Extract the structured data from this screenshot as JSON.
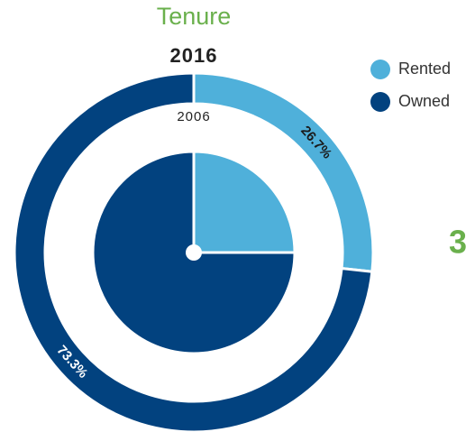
{
  "chart_data": {
    "type": "donut",
    "title": "Tenure",
    "categories": [
      "Rented",
      "Owned"
    ],
    "colors": [
      "#4fb0da",
      "#02427f"
    ],
    "series": [
      {
        "name": "2016",
        "values": [
          26.7,
          73.3
        ],
        "value_labels": [
          "26.7%",
          "73.3%"
        ]
      },
      {
        "name": "2006",
        "values": [
          25,
          75
        ]
      }
    ],
    "annotation": "3"
  }
}
